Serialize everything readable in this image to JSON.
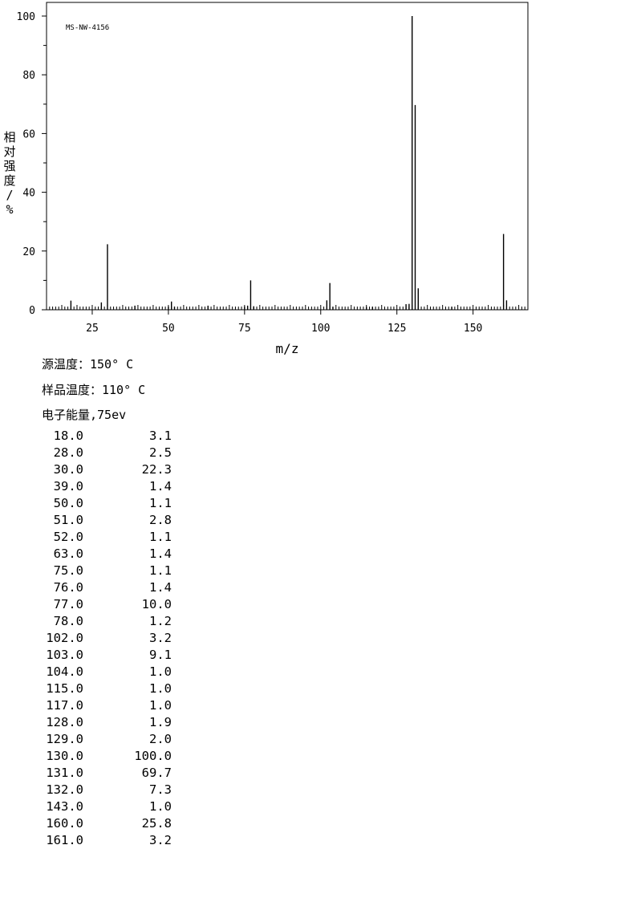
{
  "chart_data": {
    "type": "bar",
    "title": "MS-NW-4156",
    "xlabel": "m/z",
    "ylabel": "相对强度/%",
    "xlim": [
      10,
      168
    ],
    "ylim": [
      0,
      100
    ],
    "xticks": [
      25,
      50,
      75,
      100,
      125,
      150
    ],
    "yticks": [
      0,
      20,
      40,
      60,
      80,
      100
    ],
    "grid": false,
    "series": [
      {
        "x": [
          18,
          28,
          30,
          39,
          50,
          51,
          52,
          63,
          75,
          76,
          77,
          78,
          102,
          103,
          104,
          115,
          117,
          128,
          129,
          130,
          131,
          132,
          143,
          160,
          161
        ],
        "values": [
          3.1,
          2.5,
          22.3,
          1.4,
          1.1,
          2.8,
          1.1,
          1.4,
          1.1,
          1.4,
          10.0,
          1.2,
          3.2,
          9.1,
          1.0,
          1.0,
          1.0,
          1.9,
          2.0,
          100.0,
          69.7,
          7.3,
          1.0,
          25.8,
          3.2
        ]
      }
    ]
  },
  "info": {
    "source_temp": "源温度：150° C",
    "sample_temp": "样品温度：110° C",
    "electron_energy": "电子能量,75ev"
  },
  "peak_table": [
    {
      "mz": "18.0",
      "intensity": "3.1"
    },
    {
      "mz": "28.0",
      "intensity": "2.5"
    },
    {
      "mz": "30.0",
      "intensity": "22.3"
    },
    {
      "mz": "39.0",
      "intensity": "1.4"
    },
    {
      "mz": "50.0",
      "intensity": "1.1"
    },
    {
      "mz": "51.0",
      "intensity": "2.8"
    },
    {
      "mz": "52.0",
      "intensity": "1.1"
    },
    {
      "mz": "63.0",
      "intensity": "1.4"
    },
    {
      "mz": "75.0",
      "intensity": "1.1"
    },
    {
      "mz": "76.0",
      "intensity": "1.4"
    },
    {
      "mz": "77.0",
      "intensity": "10.0"
    },
    {
      "mz": "78.0",
      "intensity": "1.2"
    },
    {
      "mz": "102.0",
      "intensity": "3.2"
    },
    {
      "mz": "103.0",
      "intensity": "9.1"
    },
    {
      "mz": "104.0",
      "intensity": "1.0"
    },
    {
      "mz": "115.0",
      "intensity": "1.0"
    },
    {
      "mz": "117.0",
      "intensity": "1.0"
    },
    {
      "mz": "128.0",
      "intensity": "1.9"
    },
    {
      "mz": "129.0",
      "intensity": "2.0"
    },
    {
      "mz": "130.0",
      "intensity": "100.0"
    },
    {
      "mz": "131.0",
      "intensity": "69.7"
    },
    {
      "mz": "132.0",
      "intensity": "7.3"
    },
    {
      "mz": "143.0",
      "intensity": "1.0"
    },
    {
      "mz": "160.0",
      "intensity": "25.8"
    },
    {
      "mz": "161.0",
      "intensity": "3.2"
    }
  ]
}
